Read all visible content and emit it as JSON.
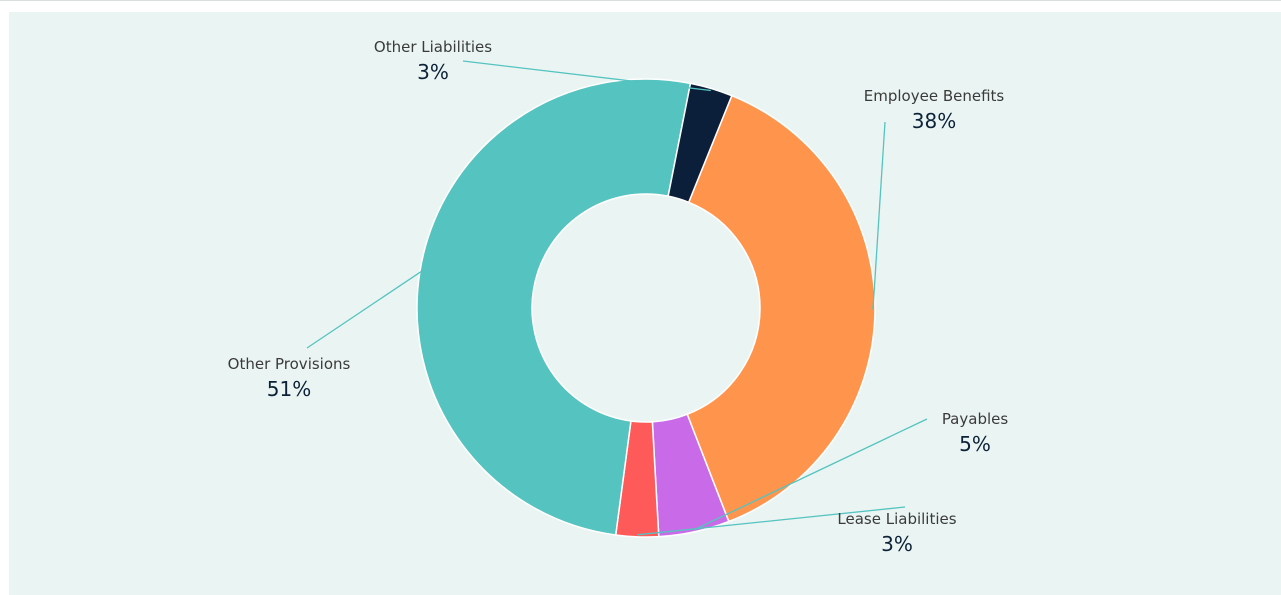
{
  "chart_data": {
    "type": "pie",
    "donut": true,
    "categories": [
      "Employee Benefits",
      "Payables",
      "Lease Liabilities",
      "Other Provisions",
      "Other Liabilities"
    ],
    "values": [
      38,
      5,
      3,
      51,
      3
    ],
    "labels": [
      "38%",
      "5%",
      "3%",
      "51%",
      "3%"
    ],
    "colors": [
      "#ff944d",
      "#c96be8",
      "#ff5a5a",
      "#55c3bf",
      "#0b1f3a"
    ],
    "leader_color": "#55c3bf",
    "title": "",
    "legend": "none"
  }
}
